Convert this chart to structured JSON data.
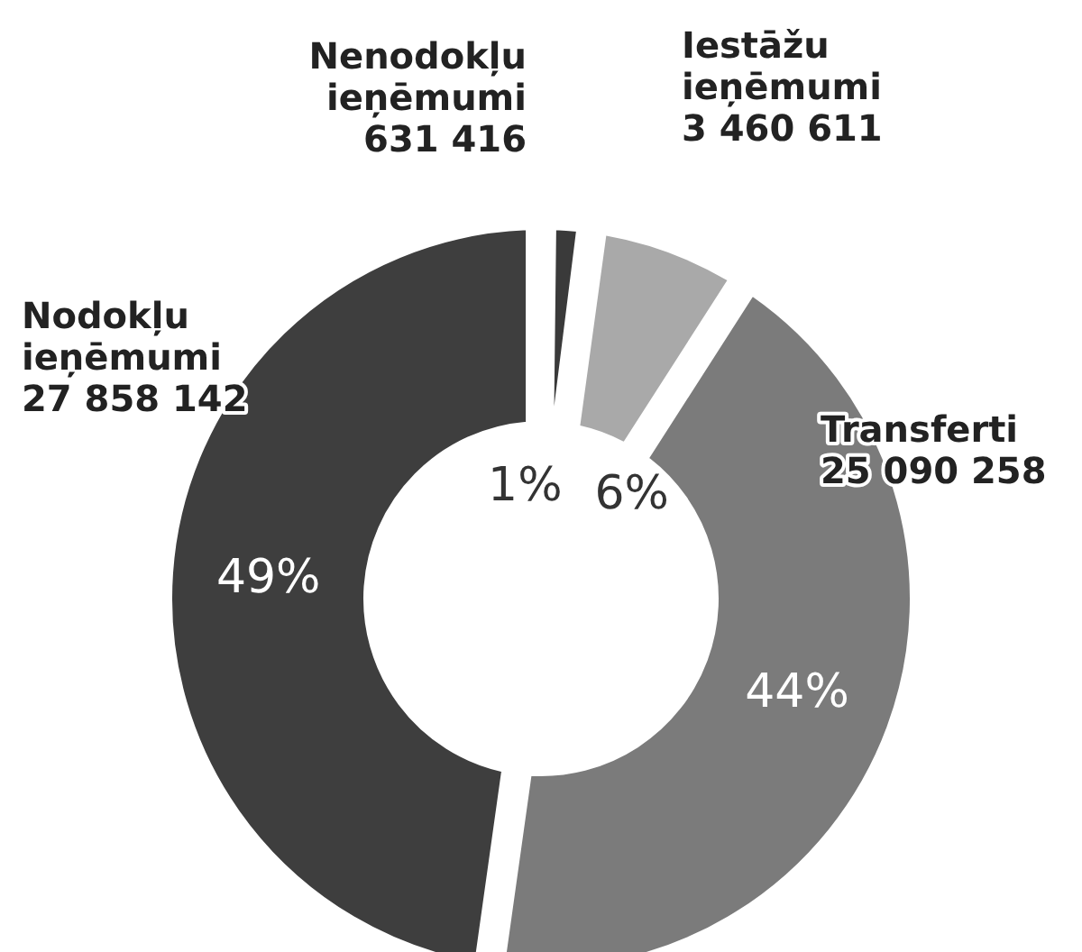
{
  "chart_data": {
    "type": "donut",
    "categories": [
      "Nenodokļu ieņēmumi",
      "Iestāžu ieņēmumi",
      "Transferti",
      "Nodokļu ieņēmumi"
    ],
    "values": [
      631416,
      3460611,
      25090258,
      27858142
    ],
    "value_labels": [
      "631 416",
      "3 460 611",
      "25 090 258",
      "27 858 142"
    ],
    "colors": [
      "#3a3a3a",
      "#a9a9a9",
      "#7b7b7b",
      "#3e3e3e"
    ],
    "annotations": [
      "1%",
      "6%",
      "44%",
      "49%"
    ],
    "legend": false
  }
}
